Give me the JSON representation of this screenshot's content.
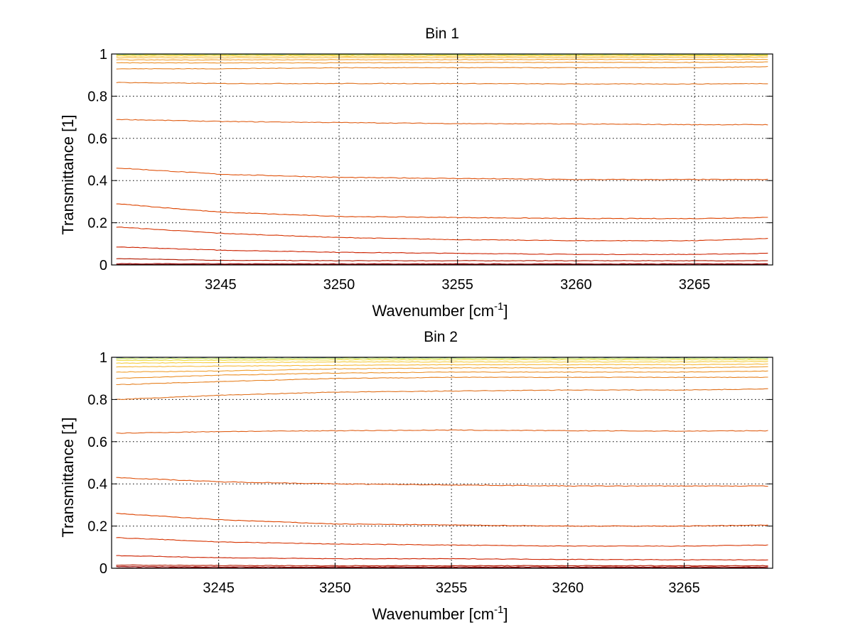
{
  "chart_data": [
    {
      "type": "line",
      "title": "Bin 1",
      "xlabel": "Wavenumber [cm",
      "xlabel_superscript": "-1",
      "xlabel_suffix": "]",
      "ylabel": "Transmittance [1]",
      "xlim": [
        3240.4,
        3268.3
      ],
      "ylim": [
        0,
        1
      ],
      "xticks": [
        3245,
        3250,
        3255,
        3260,
        3265
      ],
      "yticks": [
        0,
        0.2,
        0.4,
        0.6,
        0.8,
        1
      ],
      "grid": true,
      "legend": "none",
      "x": [
        3240.6,
        3245,
        3250,
        3255,
        3260,
        3265,
        3268.1
      ],
      "series": [
        {
          "color": "#800000",
          "values": [
            0.002,
            0.002,
            0.002,
            0.002,
            0.002,
            0.002,
            0.002
          ]
        },
        {
          "color": "#990000",
          "values": [
            0.006,
            0.005,
            0.005,
            0.005,
            0.005,
            0.005,
            0.005
          ]
        },
        {
          "color": "#b31a00",
          "values": [
            0.03,
            0.022,
            0.02,
            0.02,
            0.02,
            0.02,
            0.02
          ]
        },
        {
          "color": "#cc2200",
          "values": [
            0.085,
            0.07,
            0.06,
            0.055,
            0.05,
            0.05,
            0.055
          ]
        },
        {
          "color": "#d63300",
          "values": [
            0.18,
            0.15,
            0.13,
            0.12,
            0.115,
            0.115,
            0.125
          ]
        },
        {
          "color": "#dd4400",
          "values": [
            0.29,
            0.25,
            0.23,
            0.225,
            0.22,
            0.22,
            0.225
          ]
        },
        {
          "color": "#e05510",
          "values": [
            0.46,
            0.43,
            0.415,
            0.41,
            0.405,
            0.405,
            0.405
          ]
        },
        {
          "color": "#e06018",
          "values": [
            0.69,
            0.68,
            0.675,
            0.67,
            0.668,
            0.665,
            0.665
          ]
        },
        {
          "color": "#e0701c",
          "values": [
            0.865,
            0.86,
            0.86,
            0.86,
            0.858,
            0.858,
            0.86
          ]
        },
        {
          "color": "#e68020",
          "values": [
            0.93,
            0.93,
            0.935,
            0.935,
            0.935,
            0.935,
            0.94
          ]
        },
        {
          "color": "#eb9028",
          "values": [
            0.958,
            0.958,
            0.958,
            0.96,
            0.96,
            0.96,
            0.962
          ]
        },
        {
          "color": "#f0a030",
          "values": [
            0.972,
            0.972,
            0.973,
            0.973,
            0.974,
            0.974,
            0.975
          ]
        },
        {
          "color": "#f5b838",
          "values": [
            0.982,
            0.982,
            0.983,
            0.983,
            0.983,
            0.984,
            0.985
          ]
        },
        {
          "color": "#f5cc40",
          "values": [
            0.99,
            0.99,
            0.99,
            0.99,
            0.99,
            0.991,
            0.991
          ]
        },
        {
          "color": "#eedd44",
          "values": [
            0.995,
            0.995,
            0.995,
            0.995,
            0.995,
            0.995,
            0.995
          ]
        },
        {
          "color": "#bde05a",
          "values": [
            0.998,
            0.998,
            0.998,
            0.998,
            0.998,
            0.998,
            0.998
          ]
        },
        {
          "color": "#40c0c0",
          "values": [
            1.0,
            1.0,
            1.0,
            1.0,
            1.0,
            1.0,
            1.0
          ]
        }
      ]
    },
    {
      "type": "line",
      "title": "Bin 2",
      "xlabel": "Wavenumber [cm",
      "xlabel_superscript": "-1",
      "xlabel_suffix": "]",
      "ylabel": "Transmittance [1]",
      "xlim": [
        3240.4,
        3268.8
      ],
      "ylim": [
        0,
        1
      ],
      "xticks": [
        3245,
        3250,
        3255,
        3260,
        3265
      ],
      "yticks": [
        0,
        0.2,
        0.4,
        0.6,
        0.8,
        1
      ],
      "grid": true,
      "legend": "none",
      "x": [
        3240.6,
        3245,
        3250,
        3255,
        3260,
        3265,
        3268.6
      ],
      "series": [
        {
          "color": "#800000",
          "values": [
            0.002,
            0.002,
            0.002,
            0.002,
            0.002,
            0.002,
            0.002
          ]
        },
        {
          "color": "#990000",
          "values": [
            0.008,
            0.006,
            0.006,
            0.006,
            0.006,
            0.006,
            0.006
          ]
        },
        {
          "color": "#b31a00",
          "values": [
            0.015,
            0.013,
            0.012,
            0.012,
            0.012,
            0.012,
            0.012
          ]
        },
        {
          "color": "#cc2200",
          "values": [
            0.06,
            0.05,
            0.045,
            0.045,
            0.042,
            0.04,
            0.04
          ]
        },
        {
          "color": "#d63300",
          "values": [
            0.145,
            0.125,
            0.115,
            0.11,
            0.105,
            0.105,
            0.11
          ]
        },
        {
          "color": "#dd4400",
          "values": [
            0.26,
            0.23,
            0.21,
            0.205,
            0.2,
            0.2,
            0.205
          ]
        },
        {
          "color": "#e05510",
          "values": [
            0.43,
            0.41,
            0.4,
            0.395,
            0.39,
            0.39,
            0.39
          ]
        },
        {
          "color": "#e06018",
          "values": [
            0.64,
            0.648,
            0.652,
            0.655,
            0.652,
            0.65,
            0.652
          ]
        },
        {
          "color": "#e0701c",
          "values": [
            0.8,
            0.82,
            0.835,
            0.84,
            0.845,
            0.845,
            0.85
          ]
        },
        {
          "color": "#e68020",
          "values": [
            0.87,
            0.885,
            0.9,
            0.905,
            0.905,
            0.905,
            0.905
          ]
        },
        {
          "color": "#eb9028",
          "values": [
            0.9,
            0.915,
            0.925,
            0.93,
            0.93,
            0.93,
            0.935
          ]
        },
        {
          "color": "#f0a030",
          "values": [
            0.93,
            0.935,
            0.945,
            0.95,
            0.95,
            0.95,
            0.955
          ]
        },
        {
          "color": "#f5b838",
          "values": [
            0.955,
            0.958,
            0.962,
            0.965,
            0.965,
            0.965,
            0.968
          ]
        },
        {
          "color": "#f5cc40",
          "values": [
            0.972,
            0.975,
            0.978,
            0.978,
            0.978,
            0.978,
            0.98
          ]
        },
        {
          "color": "#eedd44",
          "values": [
            0.985,
            0.986,
            0.988,
            0.988,
            0.988,
            0.988,
            0.988
          ]
        },
        {
          "color": "#bde05a",
          "values": [
            0.994,
            0.994,
            0.995,
            0.995,
            0.995,
            0.995,
            0.995
          ]
        },
        {
          "color": "#2050a0",
          "values": [
            1.0,
            1.0,
            1.0,
            1.0,
            1.0,
            1.0,
            1.0
          ]
        }
      ]
    }
  ]
}
